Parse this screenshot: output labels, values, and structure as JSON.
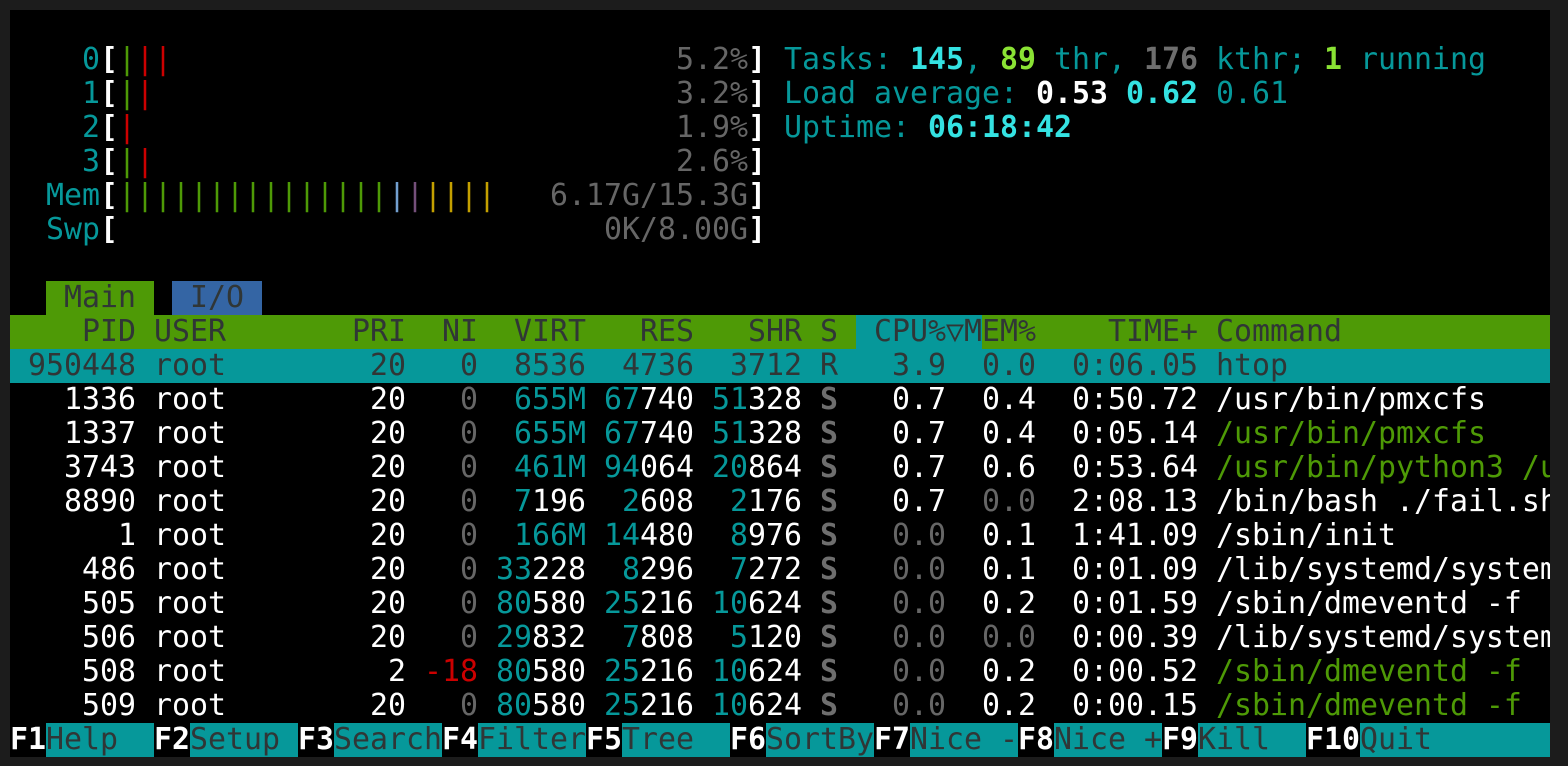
{
  "meters": {
    "bar_char": "|",
    "cpus": [
      {
        "label": "0",
        "value": "5.2%",
        "bars": [
          "#4e9a06",
          "#cc0000",
          "#cc0000"
        ]
      },
      {
        "label": "1",
        "value": "3.2%",
        "bars": [
          "#4e9a06",
          "#cc0000"
        ]
      },
      {
        "label": "2",
        "value": "1.9%",
        "bars": [
          "#cc0000"
        ]
      },
      {
        "label": "3",
        "value": "2.6%",
        "bars": [
          "#4e9a06",
          "#cc0000"
        ]
      }
    ],
    "mem": {
      "label": "Mem",
      "value": "6.17G/15.3G",
      "bars": [
        "#4e9a06",
        "#4e9a06",
        "#4e9a06",
        "#4e9a06",
        "#4e9a06",
        "#4e9a06",
        "#4e9a06",
        "#4e9a06",
        "#4e9a06",
        "#4e9a06",
        "#4e9a06",
        "#4e9a06",
        "#4e9a06",
        "#4e9a06",
        "#4e9a06",
        "#729fcf",
        "#75507b",
        "#c4a000",
        "#c4a000",
        "#c4a000",
        "#c4a000"
      ]
    },
    "swp": {
      "label": "Swp",
      "value": "0K/8.00G",
      "bars": []
    }
  },
  "summary": {
    "tasks_label": "Tasks: ",
    "tasks": "145",
    "sep1": ", ",
    "threads": "89",
    "thr_label": " thr, ",
    "kthreads": "176",
    "kthr_label": " kthr; ",
    "running": "1",
    "running_label": " running",
    "load_label": "Load average: ",
    "load1": "0.53",
    "load5": "0.62",
    "load15": "0.61",
    "uptime_label": "Uptime: ",
    "uptime": "06:18:42"
  },
  "tabs": [
    "Main",
    "I/O"
  ],
  "columns": {
    "pid": "PID",
    "user": "USER",
    "pri": "PRI",
    "ni": "NI",
    "virt": "VIRT",
    "res": "RES",
    "shr": "SHR",
    "s": "S",
    "cpu": "CPU%",
    "sort": "▽",
    "mem": "MEM%",
    "time": "TIME+",
    "cmd": "Command"
  },
  "colors": {
    "header_bg": "#4e9a06",
    "sort_col_bg": "#06989a",
    "selected_bg": "#06989a",
    "tab_main_bg": "#4e9a06",
    "tab_io_bg": "#3465a4",
    "footer_label_bg": "#06989a"
  },
  "processes": [
    {
      "pid": "950448",
      "user": "root",
      "pri": "20",
      "ni": "0",
      "virt": "8536",
      "res": "4736",
      "shr": "3712",
      "s": "R",
      "cpu": "3.9",
      "mem": "0.0",
      "time": "0:06.05",
      "cmd": "htop",
      "selected": true
    },
    {
      "pid": "1336",
      "user": "root",
      "pri": "20",
      "ni": "0",
      "virt": "655M",
      "res": "67740",
      "shr": "51328",
      "s": "S",
      "cpu": "0.7",
      "mem": "0.4",
      "time": "0:50.72",
      "cmd": "/usr/bin/pmxcfs"
    },
    {
      "pid": "1337",
      "user": "root",
      "pri": "20",
      "ni": "0",
      "virt": "655M",
      "res": "67740",
      "shr": "51328",
      "s": "S",
      "cpu": "0.7",
      "mem": "0.4",
      "time": "0:05.14",
      "cmd": "/usr/bin/pmxcfs",
      "thread": true
    },
    {
      "pid": "3743",
      "user": "root",
      "pri": "20",
      "ni": "0",
      "virt": "461M",
      "res": "94064",
      "shr": "20864",
      "s": "S",
      "cpu": "0.7",
      "mem": "0.6",
      "time": "0:53.64",
      "cmd": "/usr/bin/python3 /u",
      "thread": true
    },
    {
      "pid": "8890",
      "user": "root",
      "pri": "20",
      "ni": "0",
      "virt": "7196",
      "res": "2608",
      "shr": "2176",
      "s": "S",
      "cpu": "0.7",
      "mem": "0.0",
      "time": "2:08.13",
      "cmd": "/bin/bash ./fail.sh"
    },
    {
      "pid": "1",
      "user": "root",
      "pri": "20",
      "ni": "0",
      "virt": "166M",
      "res": "14480",
      "shr": "8976",
      "s": "S",
      "cpu": "0.0",
      "mem": "0.1",
      "time": "1:41.09",
      "cmd": "/sbin/init"
    },
    {
      "pid": "486",
      "user": "root",
      "pri": "20",
      "ni": "0",
      "virt": "33228",
      "res": "8296",
      "shr": "7272",
      "s": "S",
      "cpu": "0.0",
      "mem": "0.1",
      "time": "0:01.09",
      "cmd": "/lib/systemd/system"
    },
    {
      "pid": "505",
      "user": "root",
      "pri": "20",
      "ni": "0",
      "virt": "80580",
      "res": "25216",
      "shr": "10624",
      "s": "S",
      "cpu": "0.0",
      "mem": "0.2",
      "time": "0:01.59",
      "cmd": "/sbin/dmeventd -f"
    },
    {
      "pid": "506",
      "user": "root",
      "pri": "20",
      "ni": "0",
      "virt": "29832",
      "res": "7808",
      "shr": "5120",
      "s": "S",
      "cpu": "0.0",
      "mem": "0.0",
      "time": "0:00.39",
      "cmd": "/lib/systemd/system"
    },
    {
      "pid": "508",
      "user": "root",
      "pri": "2",
      "ni": "-18",
      "virt": "80580",
      "res": "25216",
      "shr": "10624",
      "s": "S",
      "cpu": "0.0",
      "mem": "0.2",
      "time": "0:00.52",
      "cmd": "/sbin/dmeventd -f",
      "thread": true
    },
    {
      "pid": "509",
      "user": "root",
      "pri": "20",
      "ni": "0",
      "virt": "80580",
      "res": "25216",
      "shr": "10624",
      "s": "S",
      "cpu": "0.0",
      "mem": "0.2",
      "time": "0:00.15",
      "cmd": "/sbin/dmeventd -f",
      "thread": true
    }
  ],
  "footer": [
    {
      "key": "F1",
      "label": "Help"
    },
    {
      "key": "F2",
      "label": "Setup"
    },
    {
      "key": "F3",
      "label": "Search"
    },
    {
      "key": "F4",
      "label": "Filter"
    },
    {
      "key": "F5",
      "label": "Tree"
    },
    {
      "key": "F6",
      "label": "SortBy"
    },
    {
      "key": "F7",
      "label": "Nice -"
    },
    {
      "key": "F8",
      "label": "Nice +"
    },
    {
      "key": "F9",
      "label": "Kill"
    },
    {
      "key": "F10",
      "label": "Quit"
    }
  ]
}
